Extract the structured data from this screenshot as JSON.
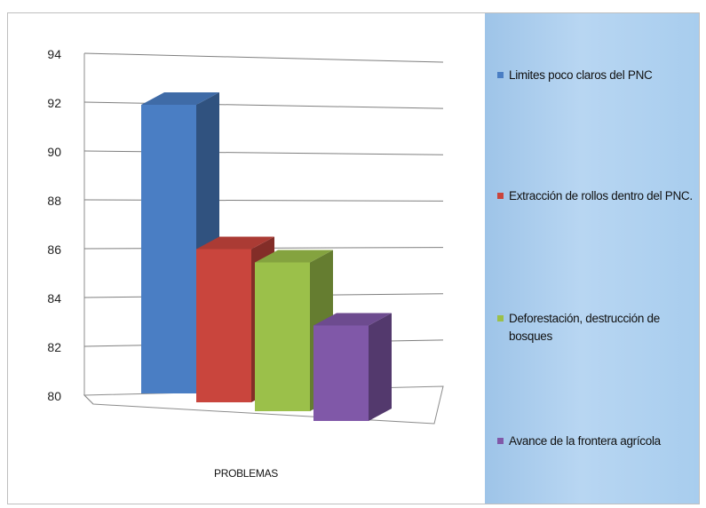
{
  "chart_data": {
    "type": "bar",
    "xlabel": "PROBLEMAS",
    "ylim": [
      80,
      94
    ],
    "yticks": [
      80,
      82,
      84,
      86,
      88,
      90,
      92,
      94
    ],
    "grid": true,
    "legend_position": "right",
    "series": [
      {
        "name": "Limites poco claros del PNC",
        "value": 93,
        "color": "#4a7ec4"
      },
      {
        "name": "Extracción de rollos dentro del PNC.",
        "value": 86.9,
        "color": "#c9453d"
      },
      {
        "name": "Deforestación, destrucción de bosques",
        "value": 86.7,
        "color": "#9bc04a"
      },
      {
        "name": "Avance de la frontera agrícola",
        "value": 84.3,
        "color": "#8058a8"
      }
    ]
  }
}
